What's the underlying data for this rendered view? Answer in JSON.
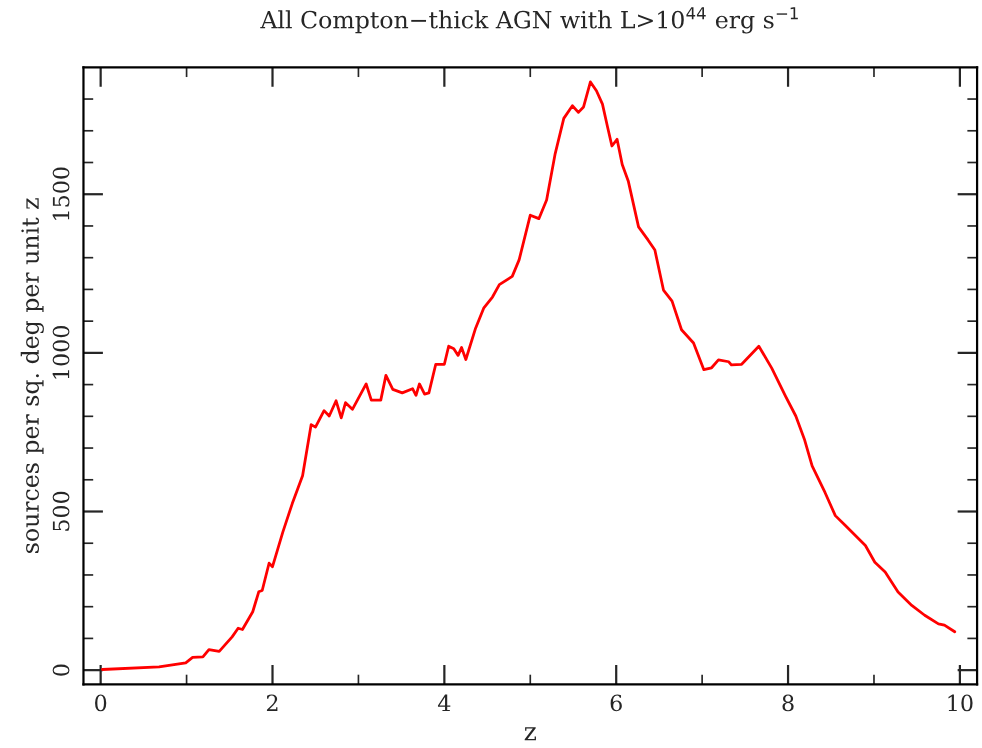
{
  "chart_data": {
    "type": "line",
    "title": "All Compton−thick AGN with L>10$^{44}$ erg s$^{−1}$",
    "xlabel": "z",
    "ylabel": "sources per sq. deg per unit z",
    "x": [
      0.02,
      0.68,
      0.99,
      1.07,
      1.19,
      1.26,
      1.38,
      1.53,
      1.6,
      1.65,
      1.77,
      1.84,
      1.88,
      1.96,
      2.0,
      2.12,
      2.23,
      2.35,
      2.45,
      2.5,
      2.6,
      2.66,
      2.74,
      2.8,
      2.85,
      2.93,
      3.09,
      3.15,
      3.26,
      3.32,
      3.4,
      3.51,
      3.63,
      3.67,
      3.71,
      3.77,
      3.82,
      3.9,
      4.0,
      4.05,
      4.11,
      4.16,
      4.2,
      4.25,
      4.36,
      4.46,
      4.56,
      4.64,
      4.79,
      4.87,
      5.0,
      5.1,
      5.19,
      5.29,
      5.39,
      5.49,
      5.56,
      5.62,
      5.7,
      5.77,
      5.84,
      5.9,
      5.95,
      6.01,
      6.07,
      6.14,
      6.26,
      6.37,
      6.45,
      6.55,
      6.65,
      6.76,
      6.9,
      7.02,
      7.11,
      7.19,
      7.31,
      7.34,
      7.46,
      7.66,
      7.81,
      7.97,
      8.09,
      8.19,
      8.28,
      8.43,
      8.55,
      8.67,
      8.9,
      9.01,
      9.13,
      9.28,
      9.44,
      9.59,
      9.75,
      9.82,
      9.94
    ],
    "series": [
      {
        "color": "#ff0000",
        "values": [
          2,
          10,
          23,
          40,
          42,
          65,
          59,
          105,
          132,
          128,
          184,
          247,
          251,
          337,
          326,
          435,
          525,
          613,
          774,
          766,
          818,
          801,
          849,
          795,
          843,
          822,
          902,
          851,
          851,
          929,
          885,
          874,
          887,
          866,
          902,
          870,
          874,
          964,
          964,
          1021,
          1013,
          992,
          1017,
          979,
          1075,
          1142,
          1176,
          1215,
          1241,
          1293,
          1434,
          1423,
          1482,
          1628,
          1739,
          1779,
          1758,
          1775,
          1854,
          1826,
          1784,
          1711,
          1652,
          1673,
          1594,
          1542,
          1397,
          1356,
          1324,
          1198,
          1163,
          1073,
          1031,
          947,
          953,
          978,
          972,
          962,
          964,
          1021,
          952,
          864,
          801,
          728,
          644,
          560,
          487,
          455,
          393,
          340,
          309,
          246,
          204,
          173,
          146,
          142,
          121
        ]
      }
    ],
    "xlim": [
      -0.2,
      10.2
    ],
    "ylim": [
      -45,
      1900
    ],
    "xticks": [
      0,
      {
        "value": 1,
        "label": null
      },
      2,
      {
        "value": 3,
        "label": null
      },
      4,
      {
        "value": 5,
        "label": null
      },
      6,
      {
        "value": 7,
        "label": null
      },
      8,
      {
        "value": 9,
        "label": null
      },
      10
    ],
    "yticks": [
      0,
      {
        "value": 100,
        "label": null
      },
      {
        "value": 200,
        "label": null
      },
      {
        "value": 300,
        "label": null
      },
      {
        "value": 400,
        "label": null
      },
      500,
      {
        "value": 600,
        "label": null
      },
      {
        "value": 700,
        "label": null
      },
      {
        "value": 800,
        "label": null
      },
      {
        "value": 900,
        "label": null
      },
      1000,
      {
        "value": 1100,
        "label": null
      },
      {
        "value": 1200,
        "label": null
      },
      {
        "value": 1300,
        "label": null
      },
      {
        "value": 1400,
        "label": null
      },
      1500,
      {
        "value": 1600,
        "label": null
      },
      {
        "value": 1700,
        "label": null
      },
      {
        "value": 1800,
        "label": null
      }
    ],
    "grid": false,
    "legend": false,
    "line_style": "solid",
    "marker": "none"
  }
}
